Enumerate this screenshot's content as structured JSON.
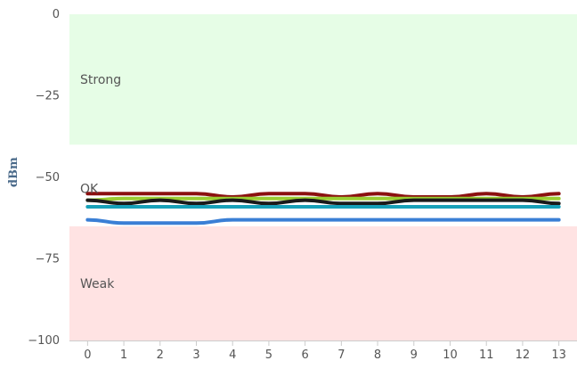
{
  "chart_data": {
    "type": "line",
    "ylabel": "dBm",
    "ylim": [
      -100,
      0
    ],
    "xlim": [
      -0.5,
      13.5
    ],
    "grid": false,
    "y_ticks": [
      0,
      -25,
      -50,
      -75,
      -100
    ],
    "y_tick_labels": [
      "0",
      "−25",
      "−50",
      "−75",
      "−100"
    ],
    "x_ticks": [
      0,
      1,
      2,
      3,
      4,
      5,
      6,
      7,
      8,
      9,
      10,
      11,
      12,
      13
    ],
    "x_tick_labels": [
      "0",
      "1",
      "2",
      "3",
      "4",
      "5",
      "6",
      "7",
      "8",
      "9",
      "10",
      "11",
      "12",
      "13"
    ],
    "bands": [
      {
        "label": "Strong",
        "from": 0,
        "to": -40,
        "color": "#e6fde6"
      },
      {
        "label": "OK",
        "from": -40,
        "to": -65,
        "color": "#ffffff"
      },
      {
        "label": "Weak",
        "from": -65,
        "to": -100,
        "color": "#ffe3e3"
      }
    ],
    "x": [
      0,
      1,
      2,
      3,
      4,
      5,
      6,
      7,
      8,
      9,
      10,
      11,
      12,
      13
    ],
    "series": [
      {
        "color": "#8b1010",
        "values": [
          -55,
          -55,
          -55,
          -55,
          -56,
          -55,
          -55,
          -56,
          -55,
          -56,
          -56,
          -55,
          -56,
          -55
        ]
      },
      {
        "color": "#9acd32",
        "values": [
          -57,
          -56.5,
          -56.5,
          -56.5,
          -56.5,
          -56.5,
          -56.5,
          -56.5,
          -56.5,
          -56.5,
          -56.5,
          -56.5,
          -56.5,
          -56.5
        ]
      },
      {
        "color": "#1a1a1a",
        "values": [
          -57,
          -58,
          -57,
          -58,
          -57,
          -58,
          -57,
          -58,
          -58,
          -57,
          -57,
          -57,
          -57,
          -58
        ]
      },
      {
        "color": "#17a0b8",
        "values": [
          -59,
          -59,
          -59,
          -59,
          -59,
          -59,
          -59,
          -59,
          -59,
          -59,
          -59,
          -59,
          -59,
          -59
        ]
      },
      {
        "color": "#3a7fd5",
        "values": [
          -63,
          -64,
          -64,
          -64,
          -63,
          -63,
          -63,
          -63,
          -63,
          -63,
          -63,
          -63,
          -63,
          -63
        ]
      }
    ]
  }
}
